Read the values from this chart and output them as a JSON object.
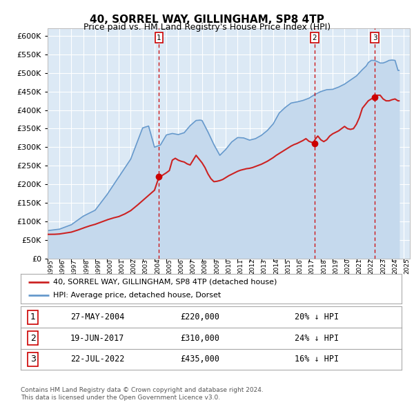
{
  "title": "40, SORREL WAY, GILLINGHAM, SP8 4TP",
  "subtitle": "Price paid vs. HM Land Registry's House Price Index (HPI)",
  "background_color": "#ffffff",
  "plot_background_color": "#dce9f5",
  "grid_color": "#ffffff",
  "ylim": [
    0,
    620000
  ],
  "legend_label_red": "40, SORREL WAY, GILLINGHAM, SP8 4TP (detached house)",
  "legend_label_blue": "HPI: Average price, detached house, Dorset",
  "sale_events": [
    {
      "num": 1,
      "date": "27-MAY-2004",
      "price": "£220,000",
      "pct": "20% ↓ HPI",
      "x_year": 2004.38,
      "y": 220000
    },
    {
      "num": 2,
      "date": "19-JUN-2017",
      "price": "£310,000",
      "pct": "24% ↓ HPI",
      "x_year": 2017.46,
      "y": 310000
    },
    {
      "num": 3,
      "date": "22-JUL-2022",
      "price": "£435,000",
      "pct": "16% ↓ HPI",
      "x_year": 2022.55,
      "y": 435000
    }
  ],
  "sale_marker_color": "#cc0000",
  "line_color_red": "#cc2222",
  "line_color_blue": "#6699cc",
  "fill_color_blue": "#c5d9ed",
  "footer_text": "Contains HM Land Registry data © Crown copyright and database right 2024.\nThis data is licensed under the Open Government Licence v3.0.",
  "xtick_years": [
    1995,
    1996,
    1997,
    1998,
    1999,
    2000,
    2001,
    2002,
    2003,
    2004,
    2005,
    2006,
    2007,
    2008,
    2009,
    2010,
    2011,
    2012,
    2013,
    2014,
    2015,
    2016,
    2017,
    2018,
    2019,
    2020,
    2021,
    2022,
    2023,
    2024,
    2025
  ]
}
